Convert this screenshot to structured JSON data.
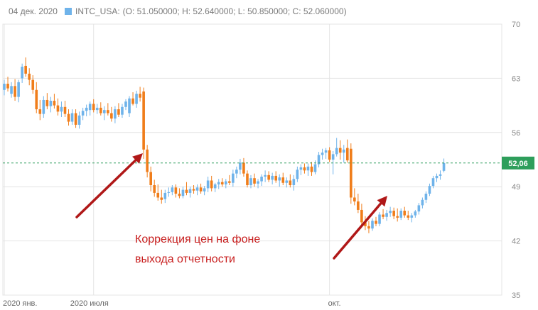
{
  "header": {
    "date": "04 дек. 2020",
    "symbol": "INTC_USA:",
    "ohlc": "(O: 51.050000; H: 52.640000; L: 50.850000; C: 52.060000)"
  },
  "colors": {
    "up": "#6fb3ea",
    "down": "#f07d1a",
    "grid": "#e4e4e4",
    "price_line": "#2e9e5b",
    "price_badge": "#2e9e5b",
    "arrow": "#b01818",
    "annotation": "#c81e1e"
  },
  "annotation": {
    "line1": "Коррекция цен на фоне",
    "line2": "выхода отчетности"
  },
  "chart_data": {
    "type": "candlestick",
    "title": "",
    "series_name": "INTC_USA",
    "xlim": [
      0,
      138
    ],
    "ylim": [
      35,
      70
    ],
    "y_ticks": [
      35,
      42,
      49,
      56,
      63,
      70
    ],
    "x_ticks": [
      {
        "label": "2020 янв.",
        "x": 0
      },
      {
        "label": "2020 июля",
        "x": 25
      },
      {
        "label": "окт.",
        "x": 91
      }
    ],
    "last_price": 52.06,
    "last_price_label": "52,06",
    "grid": true,
    "candles": [
      {
        "o": 61.5,
        "h": 62.8,
        "l": 60.8,
        "c": 62.3
      },
      {
        "o": 62.3,
        "h": 63.2,
        "l": 61.3,
        "c": 61.7
      },
      {
        "o": 61.0,
        "h": 62.5,
        "l": 60.5,
        "c": 62.0
      },
      {
        "o": 62.0,
        "h": 62.9,
        "l": 60.1,
        "c": 60.6
      },
      {
        "o": 60.6,
        "h": 62.8,
        "l": 59.9,
        "c": 62.5
      },
      {
        "o": 63.0,
        "h": 64.9,
        "l": 62.4,
        "c": 64.5
      },
      {
        "o": 64.6,
        "h": 65.7,
        "l": 63.2,
        "c": 63.6
      },
      {
        "o": 63.6,
        "h": 64.3,
        "l": 62.1,
        "c": 62.8
      },
      {
        "o": 62.8,
        "h": 63.4,
        "l": 61.0,
        "c": 61.5
      },
      {
        "o": 61.5,
        "h": 62.5,
        "l": 58.5,
        "c": 59.0
      },
      {
        "o": 59.0,
        "h": 60.2,
        "l": 57.6,
        "c": 58.4
      },
      {
        "o": 58.4,
        "h": 60.7,
        "l": 57.9,
        "c": 60.2
      },
      {
        "o": 60.2,
        "h": 61.1,
        "l": 59.0,
        "c": 59.4
      },
      {
        "o": 59.4,
        "h": 60.6,
        "l": 58.6,
        "c": 60.1
      },
      {
        "o": 60.1,
        "h": 61.0,
        "l": 59.1,
        "c": 59.5
      },
      {
        "o": 59.5,
        "h": 60.4,
        "l": 58.2,
        "c": 58.7
      },
      {
        "o": 58.7,
        "h": 60.0,
        "l": 58.0,
        "c": 59.3
      },
      {
        "o": 59.3,
        "h": 60.1,
        "l": 58.0,
        "c": 58.4
      },
      {
        "o": 58.4,
        "h": 59.0,
        "l": 56.9,
        "c": 57.4
      },
      {
        "o": 57.4,
        "h": 59.0,
        "l": 57.0,
        "c": 58.5
      },
      {
        "o": 58.5,
        "h": 59.0,
        "l": 56.6,
        "c": 57.0
      },
      {
        "o": 57.0,
        "h": 58.7,
        "l": 56.5,
        "c": 58.2
      },
      {
        "o": 58.2,
        "h": 59.2,
        "l": 57.6,
        "c": 58.8
      },
      {
        "o": 58.8,
        "h": 59.6,
        "l": 58.1,
        "c": 59.2
      },
      {
        "o": 58.9,
        "h": 60.0,
        "l": 58.2,
        "c": 59.7
      },
      {
        "o": 59.7,
        "h": 60.3,
        "l": 58.6,
        "c": 58.9
      },
      {
        "o": 58.9,
        "h": 59.7,
        "l": 58.4,
        "c": 59.2
      },
      {
        "o": 59.2,
        "h": 59.9,
        "l": 58.2,
        "c": 58.5
      },
      {
        "o": 58.5,
        "h": 59.4,
        "l": 57.6,
        "c": 58.9
      },
      {
        "o": 58.9,
        "h": 59.8,
        "l": 58.2,
        "c": 58.5
      },
      {
        "o": 58.5,
        "h": 59.3,
        "l": 57.4,
        "c": 57.8
      },
      {
        "o": 57.8,
        "h": 59.4,
        "l": 57.2,
        "c": 59.0
      },
      {
        "o": 59.0,
        "h": 59.8,
        "l": 58.0,
        "c": 58.3
      },
      {
        "o": 58.3,
        "h": 59.7,
        "l": 57.9,
        "c": 59.3
      },
      {
        "o": 59.3,
        "h": 60.3,
        "l": 58.9,
        "c": 60.0
      },
      {
        "o": 58.5,
        "h": 60.7,
        "l": 58.0,
        "c": 60.4
      },
      {
        "o": 60.4,
        "h": 61.2,
        "l": 59.5,
        "c": 59.7
      },
      {
        "o": 59.7,
        "h": 61.4,
        "l": 59.2,
        "c": 61.0
      },
      {
        "o": 61.0,
        "h": 61.9,
        "l": 60.0,
        "c": 60.5
      },
      {
        "o": 61.3,
        "h": 61.8,
        "l": 52.6,
        "c": 53.8
      },
      {
        "o": 53.8,
        "h": 54.4,
        "l": 50.2,
        "c": 50.9
      },
      {
        "o": 50.9,
        "h": 51.6,
        "l": 48.4,
        "c": 49.2
      },
      {
        "o": 49.2,
        "h": 49.9,
        "l": 47.7,
        "c": 48.2
      },
      {
        "o": 48.2,
        "h": 49.3,
        "l": 47.2,
        "c": 47.6
      },
      {
        "o": 47.6,
        "h": 48.6,
        "l": 46.8,
        "c": 47.3
      },
      {
        "o": 47.4,
        "h": 48.6,
        "l": 46.9,
        "c": 48.2
      },
      {
        "o": 48.2,
        "h": 48.9,
        "l": 47.7,
        "c": 48.3
      },
      {
        "o": 48.3,
        "h": 49.2,
        "l": 47.9,
        "c": 48.9
      },
      {
        "o": 48.9,
        "h": 49.3,
        "l": 47.6,
        "c": 48.1
      },
      {
        "o": 48.1,
        "h": 48.8,
        "l": 47.5,
        "c": 47.8
      },
      {
        "o": 47.8,
        "h": 49.0,
        "l": 47.5,
        "c": 48.6
      },
      {
        "o": 48.6,
        "h": 49.6,
        "l": 47.9,
        "c": 48.2
      },
      {
        "o": 48.2,
        "h": 49.0,
        "l": 47.6,
        "c": 48.7
      },
      {
        "o": 48.7,
        "h": 49.2,
        "l": 48.1,
        "c": 48.5
      },
      {
        "o": 48.5,
        "h": 49.3,
        "l": 47.9,
        "c": 48.9
      },
      {
        "o": 48.9,
        "h": 49.4,
        "l": 48.1,
        "c": 48.4
      },
      {
        "o": 48.4,
        "h": 49.1,
        "l": 47.9,
        "c": 48.8
      },
      {
        "o": 48.8,
        "h": 50.3,
        "l": 48.3,
        "c": 49.8
      },
      {
        "o": 49.8,
        "h": 50.4,
        "l": 48.4,
        "c": 48.8
      },
      {
        "o": 48.8,
        "h": 49.5,
        "l": 48.3,
        "c": 49.3
      },
      {
        "o": 49.3,
        "h": 50.0,
        "l": 48.7,
        "c": 49.6
      },
      {
        "o": 49.6,
        "h": 50.1,
        "l": 49.0,
        "c": 49.3
      },
      {
        "o": 49.3,
        "h": 50.0,
        "l": 48.8,
        "c": 49.7
      },
      {
        "o": 49.7,
        "h": 50.5,
        "l": 49.2,
        "c": 49.5
      },
      {
        "o": 49.5,
        "h": 51.2,
        "l": 49.0,
        "c": 50.7
      },
      {
        "o": 50.7,
        "h": 51.6,
        "l": 50.1,
        "c": 51.2
      },
      {
        "o": 51.2,
        "h": 52.6,
        "l": 50.6,
        "c": 52.1
      },
      {
        "o": 52.1,
        "h": 52.7,
        "l": 50.3,
        "c": 50.7
      },
      {
        "o": 50.7,
        "h": 51.1,
        "l": 48.9,
        "c": 49.2
      },
      {
        "o": 49.2,
        "h": 50.5,
        "l": 48.8,
        "c": 50.1
      },
      {
        "o": 50.1,
        "h": 50.7,
        "l": 49.0,
        "c": 49.4
      },
      {
        "o": 49.4,
        "h": 50.0,
        "l": 48.8,
        "c": 49.7
      },
      {
        "o": 49.7,
        "h": 50.6,
        "l": 49.1,
        "c": 50.3
      },
      {
        "o": 50.3,
        "h": 51.1,
        "l": 49.6,
        "c": 50.5
      },
      {
        "o": 50.5,
        "h": 51.0,
        "l": 49.6,
        "c": 49.9
      },
      {
        "o": 49.9,
        "h": 50.8,
        "l": 49.3,
        "c": 50.4
      },
      {
        "o": 50.4,
        "h": 51.0,
        "l": 49.5,
        "c": 49.8
      },
      {
        "o": 49.8,
        "h": 50.6,
        "l": 49.0,
        "c": 50.2
      },
      {
        "o": 50.2,
        "h": 50.8,
        "l": 49.2,
        "c": 49.5
      },
      {
        "o": 49.5,
        "h": 50.2,
        "l": 48.9,
        "c": 49.8
      },
      {
        "o": 49.8,
        "h": 50.6,
        "l": 48.9,
        "c": 49.2
      },
      {
        "o": 49.2,
        "h": 50.5,
        "l": 48.5,
        "c": 50.0
      },
      {
        "o": 50.0,
        "h": 51.6,
        "l": 49.6,
        "c": 51.2
      },
      {
        "o": 51.2,
        "h": 51.9,
        "l": 50.5,
        "c": 51.5
      },
      {
        "o": 51.5,
        "h": 52.0,
        "l": 50.7,
        "c": 51.1
      },
      {
        "o": 51.1,
        "h": 52.0,
        "l": 50.4,
        "c": 51.6
      },
      {
        "o": 51.6,
        "h": 52.2,
        "l": 50.4,
        "c": 50.9
      },
      {
        "o": 50.9,
        "h": 52.4,
        "l": 50.6,
        "c": 51.9
      },
      {
        "o": 51.9,
        "h": 53.5,
        "l": 51.5,
        "c": 53.1
      },
      {
        "o": 53.1,
        "h": 53.9,
        "l": 52.5,
        "c": 53.4
      },
      {
        "o": 53.4,
        "h": 54.0,
        "l": 52.6,
        "c": 53.7
      },
      {
        "o": 53.7,
        "h": 54.1,
        "l": 52.2,
        "c": 52.5
      },
      {
        "o": 52.5,
        "h": 53.6,
        "l": 50.6,
        "c": 53.2
      },
      {
        "o": 53.2,
        "h": 55.3,
        "l": 52.9,
        "c": 54.0
      },
      {
        "o": 54.0,
        "h": 55.0,
        "l": 52.5,
        "c": 53.4
      },
      {
        "o": 53.4,
        "h": 54.4,
        "l": 52.1,
        "c": 53.8
      },
      {
        "o": 54.0,
        "h": 55.1,
        "l": 52.1,
        "c": 52.4
      },
      {
        "o": 53.9,
        "h": 54.6,
        "l": 46.8,
        "c": 47.6
      },
      {
        "o": 47.6,
        "h": 48.8,
        "l": 46.6,
        "c": 47.1
      },
      {
        "o": 47.1,
        "h": 48.1,
        "l": 45.6,
        "c": 46.0
      },
      {
        "o": 46.0,
        "h": 46.8,
        "l": 44.0,
        "c": 44.4
      },
      {
        "o": 44.4,
        "h": 45.2,
        "l": 43.4,
        "c": 43.9
      },
      {
        "o": 43.9,
        "h": 44.6,
        "l": 43.0,
        "c": 43.6
      },
      {
        "o": 43.6,
        "h": 44.9,
        "l": 43.3,
        "c": 44.6
      },
      {
        "o": 44.6,
        "h": 45.1,
        "l": 43.9,
        "c": 44.2
      },
      {
        "o": 44.2,
        "h": 45.7,
        "l": 43.9,
        "c": 45.4
      },
      {
        "o": 45.4,
        "h": 46.1,
        "l": 44.8,
        "c": 45.1
      },
      {
        "o": 45.1,
        "h": 46.0,
        "l": 44.6,
        "c": 45.6
      },
      {
        "o": 45.6,
        "h": 46.4,
        "l": 45.1,
        "c": 45.9
      },
      {
        "o": 45.9,
        "h": 46.3,
        "l": 44.8,
        "c": 45.2
      },
      {
        "o": 45.2,
        "h": 46.2,
        "l": 44.5,
        "c": 45.0
      },
      {
        "o": 45.0,
        "h": 46.2,
        "l": 44.7,
        "c": 45.9
      },
      {
        "o": 45.9,
        "h": 46.4,
        "l": 45.0,
        "c": 45.3
      },
      {
        "o": 45.3,
        "h": 45.9,
        "l": 44.7,
        "c": 45.0
      },
      {
        "o": 45.0,
        "h": 45.6,
        "l": 44.4,
        "c": 45.3
      },
      {
        "o": 45.3,
        "h": 46.0,
        "l": 45.0,
        "c": 45.8
      },
      {
        "o": 45.8,
        "h": 46.9,
        "l": 45.4,
        "c": 46.6
      },
      {
        "o": 46.6,
        "h": 47.6,
        "l": 46.2,
        "c": 47.3
      },
      {
        "o": 47.3,
        "h": 48.4,
        "l": 46.9,
        "c": 48.1
      },
      {
        "o": 48.1,
        "h": 49.4,
        "l": 47.8,
        "c": 49.1
      },
      {
        "o": 49.1,
        "h": 50.4,
        "l": 48.8,
        "c": 50.1
      },
      {
        "o": 50.1,
        "h": 50.7,
        "l": 49.6,
        "c": 50.4
      },
      {
        "o": 50.4,
        "h": 51.1,
        "l": 49.9,
        "c": 50.6
      },
      {
        "o": 51.05,
        "h": 52.64,
        "l": 50.85,
        "c": 52.06
      }
    ]
  }
}
